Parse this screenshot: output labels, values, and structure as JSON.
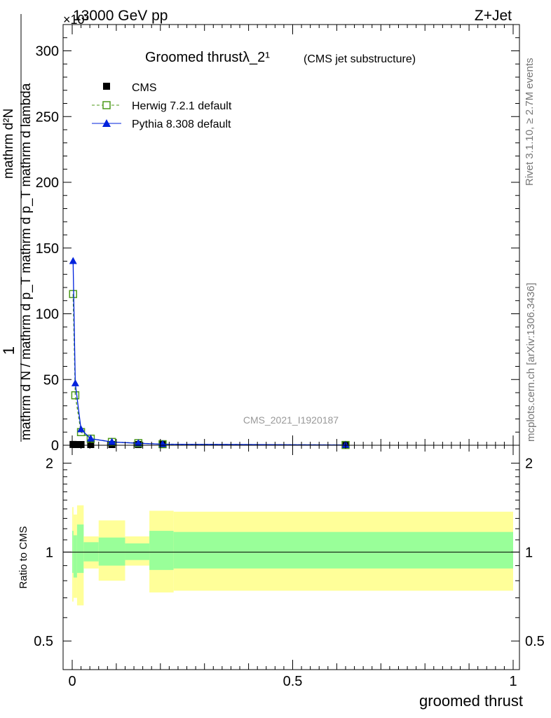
{
  "header": {
    "energy_label": "13000 GeV pp",
    "process_label": "Z+Jet",
    "exponent_label": "×10³"
  },
  "side_labels": {
    "rivet": "Rivet 3.1.10, ≥ 2.7M events",
    "mcplots": "mcplots.cern.ch [arXiv:1306.3436]"
  },
  "chart_data": [
    {
      "type": "line",
      "title": "Groomed thrustλ_2¹",
      "subtitle": "(CMS jet substructure)",
      "watermark": "CMS_2021_I1920187",
      "ylabel_lines": [
        "1",
        "mathrm d N / mathrm d p_T mathrm d p_T mathrm d lambda",
        "mathrm d²N"
      ],
      "xlim": [
        0,
        1
      ],
      "ylim": [
        0,
        320
      ],
      "y_scale_note": "×10³",
      "y_ticks": [
        0,
        50,
        100,
        150,
        200,
        250,
        300
      ],
      "x_ticks": [
        0,
        0.5,
        1
      ],
      "legend_position": "top-left",
      "series": [
        {
          "name": "CMS",
          "color": "#000000",
          "marker": "square-filled",
          "x": [
            0.002,
            0.007,
            0.02,
            0.042,
            0.09,
            0.15,
            0.205,
            0.62
          ],
          "y": [
            0.6,
            0.5,
            0.4,
            0.3,
            0.2,
            0.15,
            0.1,
            0.05
          ]
        },
        {
          "name": "Herwig 7.2.1 default",
          "color": "#4d9a1a",
          "marker": "square-open",
          "dashed": true,
          "x": [
            0.002,
            0.007,
            0.02,
            0.042,
            0.09,
            0.15,
            0.205,
            0.62
          ],
          "y": [
            115,
            38,
            10,
            5,
            2.5,
            1.6,
            0.8,
            0.2
          ]
        },
        {
          "name": "Pythia 8.308 default",
          "color": "#0022dd",
          "marker": "triangle",
          "dashed": false,
          "x": [
            0.002,
            0.007,
            0.02,
            0.042,
            0.09,
            0.15,
            0.205,
            0.62
          ],
          "y": [
            140,
            47,
            12,
            5,
            2.5,
            1.5,
            0.8,
            0.2
          ]
        }
      ]
    },
    {
      "type": "area",
      "ylabel": "Ratio to CMS",
      "xlabel": "groomed thrust",
      "xlim": [
        0,
        1
      ],
      "ylim": [
        0.4,
        2.3
      ],
      "y_scale": "log",
      "y_ticks": [
        0.5,
        1,
        2
      ],
      "x_ticks": [
        0,
        0.5,
        1
      ],
      "reference_line": 1,
      "bins": [
        {
          "x0": 0.0,
          "x1": 0.003,
          "inner": [
            0.85,
            1.18
          ],
          "outer": [
            0.68,
            1.42
          ]
        },
        {
          "x0": 0.003,
          "x1": 0.011,
          "inner": [
            0.82,
            1.14
          ],
          "outer": [
            0.7,
            1.34
          ]
        },
        {
          "x0": 0.011,
          "x1": 0.026,
          "inner": [
            0.85,
            1.24
          ],
          "outer": [
            0.66,
            1.44
          ]
        },
        {
          "x0": 0.026,
          "x1": 0.06,
          "inner": [
            0.93,
            1.08
          ],
          "outer": [
            0.88,
            1.13
          ]
        },
        {
          "x0": 0.06,
          "x1": 0.12,
          "inner": [
            0.9,
            1.12
          ],
          "outer": [
            0.8,
            1.28
          ]
        },
        {
          "x0": 0.12,
          "x1": 0.175,
          "inner": [
            0.94,
            1.07
          ],
          "outer": [
            0.9,
            1.13
          ]
        },
        {
          "x0": 0.175,
          "x1": 0.23,
          "inner": [
            0.87,
            1.18
          ],
          "outer": [
            0.73,
            1.38
          ]
        },
        {
          "x0": 0.23,
          "x1": 1.0,
          "inner": [
            0.88,
            1.17
          ],
          "outer": [
            0.74,
            1.37
          ]
        }
      ],
      "band_colors": {
        "inner": "#99ff99",
        "outer": "#ffff99"
      }
    }
  ]
}
